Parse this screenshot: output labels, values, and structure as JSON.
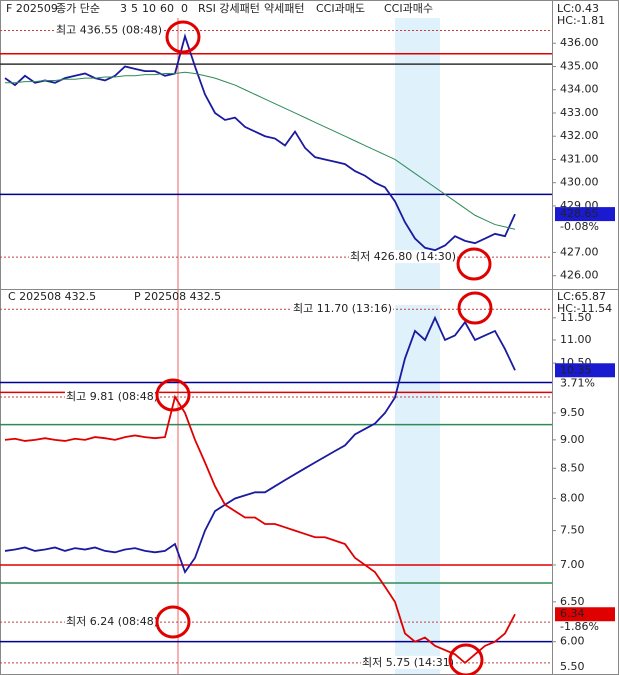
{
  "chart_data": [
    {
      "type": "line",
      "header": [
        "F 202509",
        "종가 단순",
        "3",
        "5",
        "10",
        "60",
        "0",
        "RSI 강세패턴",
        "약세패턴",
        "CCI과매도",
        "CCI과매수"
      ],
      "lc": "LC:0.43",
      "hc": "HC:-1.81",
      "ylim": [
        425.6,
        437
      ],
      "yticks": [
        {
          "value": 426,
          "label": "426.00"
        },
        {
          "value": 427,
          "label": "427.00"
        },
        {
          "value": 429,
          "label": "429.00"
        },
        {
          "value": 430,
          "label": "430.00"
        },
        {
          "value": 431,
          "label": "431.00"
        },
        {
          "value": 432,
          "label": "432.00"
        },
        {
          "value": 433,
          "label": "433.00"
        },
        {
          "value": 434,
          "label": "434.00"
        },
        {
          "value": 435,
          "label": "435.00"
        },
        {
          "value": 436,
          "label": "436.00"
        }
      ],
      "series": [
        {
          "color": "#1a1aa0",
          "values": [
            434.5,
            434.2,
            434.6,
            434.3,
            434.4,
            434.3,
            434.5,
            434.6,
            434.7,
            434.5,
            434.4,
            434.6,
            435.0,
            434.9,
            434.8,
            434.8,
            434.6,
            434.7,
            436.3,
            435.0,
            433.8,
            433.0,
            432.7,
            432.8,
            432.4,
            432.2,
            432.0,
            431.9,
            431.6,
            432.2,
            431.5,
            431.1,
            431.0,
            430.9,
            430.8,
            430.5,
            430.3,
            430.0,
            429.8,
            429.2,
            428.3,
            427.6,
            427.2,
            427.1,
            427.3,
            427.7,
            427.5,
            427.4,
            427.6,
            427.8,
            427.7,
            428.65
          ]
        },
        {
          "color": "#2e8b57",
          "values": [
            434.3,
            434.3,
            434.35,
            434.35,
            434.4,
            434.4,
            434.45,
            434.45,
            434.5,
            434.5,
            434.55,
            434.55,
            434.6,
            434.6,
            434.65,
            434.65,
            434.7,
            434.7,
            434.75,
            434.7,
            434.6,
            434.5,
            434.35,
            434.2,
            434.0,
            433.8,
            433.6,
            433.4,
            433.2,
            433.0,
            432.8,
            432.6,
            432.4,
            432.2,
            432.0,
            431.8,
            431.6,
            431.4,
            431.2,
            431.0,
            430.7,
            430.4,
            430.1,
            429.8,
            429.5,
            429.2,
            428.9,
            428.6,
            428.4,
            428.2,
            428.1,
            428.0
          ]
        }
      ],
      "levels": [
        {
          "value": 435.55,
          "color": "#e00000"
        },
        {
          "value": 435.1,
          "color": "#333333"
        },
        {
          "value": 429.5,
          "color": "#000090"
        }
      ],
      "annotations": [
        {
          "text": "최고 436.55 (08:48)",
          "value": 436.55
        },
        {
          "text": "최저 426.80 (14:30)",
          "value": 426.8
        }
      ],
      "current": [
        {
          "value": 428.65,
          "change": "-0.08%",
          "color": "#1a1ad0"
        }
      ]
    },
    {
      "type": "line",
      "log": true,
      "header": [
        "C 202508 432.5",
        "P 202508 432.5"
      ],
      "lc": "LC:65.87",
      "hc": "HC:-11.54",
      "ylim": [
        5.5,
        11.8
      ],
      "yticks": [
        {
          "value": 5.5,
          "label": "5.50"
        },
        {
          "value": 6,
          "label": "6.00"
        },
        {
          "value": 6.5,
          "label": "6.50"
        },
        {
          "value": 7,
          "label": "7.00"
        },
        {
          "value": 7.5,
          "label": "7.50"
        },
        {
          "value": 8,
          "label": "8.00"
        },
        {
          "value": 8.5,
          "label": "8.50"
        },
        {
          "value": 9,
          "label": "9.00"
        },
        {
          "value": 9.5,
          "label": "9.50"
        },
        {
          "value": 10.5,
          "label": "10.50"
        },
        {
          "value": 11,
          "label": "11.00"
        },
        {
          "value": 11.5,
          "label": "11.50"
        }
      ],
      "series": [
        {
          "color": "#1a1aa0",
          "values": [
            7.2,
            7.22,
            7.25,
            7.2,
            7.22,
            7.25,
            7.2,
            7.24,
            7.22,
            7.25,
            7.2,
            7.18,
            7.22,
            7.24,
            7.2,
            7.18,
            7.2,
            7.3,
            6.9,
            7.1,
            7.5,
            7.8,
            7.9,
            8.0,
            8.05,
            8.1,
            8.1,
            8.2,
            8.3,
            8.4,
            8.5,
            8.6,
            8.7,
            8.8,
            8.9,
            9.1,
            9.2,
            9.3,
            9.5,
            9.8,
            10.6,
            11.2,
            11.0,
            11.5,
            11.0,
            11.1,
            11.4,
            11.0,
            11.1,
            11.2,
            10.8,
            10.35
          ]
        },
        {
          "color": "#e00000",
          "values": [
            9.0,
            9.02,
            8.98,
            9.0,
            9.03,
            9.0,
            8.98,
            9.02,
            9.0,
            9.05,
            9.03,
            9.0,
            9.05,
            9.08,
            9.05,
            9.03,
            9.05,
            9.81,
            9.5,
            9.0,
            8.6,
            8.2,
            7.9,
            7.8,
            7.7,
            7.7,
            7.6,
            7.6,
            7.55,
            7.5,
            7.45,
            7.4,
            7.4,
            7.35,
            7.3,
            7.1,
            7.0,
            6.9,
            6.7,
            6.5,
            6.1,
            6.0,
            6.05,
            5.95,
            5.9,
            5.85,
            5.75,
            5.85,
            5.95,
            6.0,
            6.1,
            6.34
          ]
        }
      ],
      "levels": [
        {
          "value": 10.1,
          "color": "#000090"
        },
        {
          "value": 9.9,
          "color": "#e00000"
        },
        {
          "value": 9.28,
          "color": "#2e8b57"
        },
        {
          "value": 7.0,
          "color": "#e00000"
        },
        {
          "value": 6.75,
          "color": "#2e8b57"
        },
        {
          "value": 6.0,
          "color": "#000090"
        }
      ],
      "annotations": [
        {
          "text": "최고 11.70 (13:16)",
          "value": 11.7
        },
        {
          "text": "최고 9.81 (08:48)",
          "value": 9.81
        },
        {
          "text": "최저 6.24 (08:48)",
          "value": 6.24
        },
        {
          "text": "최저 5.75 (14:31)",
          "value": 5.75
        }
      ],
      "current": [
        {
          "value": 10.35,
          "change": "3.71%",
          "color": "#1a1ad0"
        },
        {
          "value": 6.34,
          "change": "-1.86%",
          "color": "#e00000"
        }
      ]
    }
  ]
}
